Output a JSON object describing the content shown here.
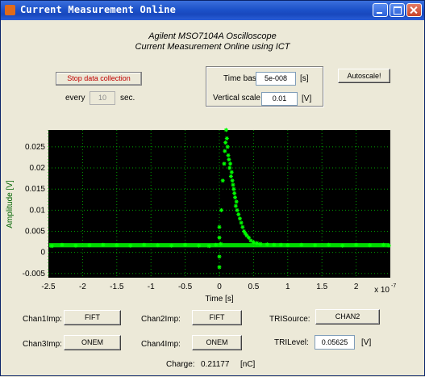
{
  "window": {
    "title": "Current Measurement Online"
  },
  "header": {
    "line1": "Agilent MSO7104A Oscilloscope",
    "line2": "Current Measurement Online using ICT"
  },
  "controls": {
    "stop_button": "Stop data collection",
    "every_label": "every",
    "every_value": "10",
    "sec_label": "sec.",
    "timebase_label": "Time base",
    "timebase_value": "5e-008",
    "timebase_unit": "[s]",
    "vscale_label": "Vertical scale",
    "vscale_value": "0.01",
    "vscale_unit": "[V]",
    "autoscale_button": "Autoscale!"
  },
  "channels": {
    "chan1_label": "Chan1Imp:",
    "chan1_value": "FIFT",
    "chan2_label": "Chan2Imp:",
    "chan2_value": "FIFT",
    "chan3_label": "Chan3Imp:",
    "chan3_value": "ONEM",
    "chan4_label": "Chan4Imp:",
    "chan4_value": "ONEM",
    "trisource_label": "TRISource:",
    "trisource_value": "CHAN2",
    "trilevel_label": "TRILevel:",
    "trilevel_value": "0.05625",
    "trilevel_unit": "[V]",
    "charge_label": "Charge:",
    "charge_value": "0.21177",
    "charge_unit": "[nC]"
  },
  "colors": {
    "plot_bg": "#000000",
    "trace": "#00ff00",
    "grid": "#00a000"
  },
  "chart_data": {
    "type": "scatter",
    "xlabel": "Time [s]",
    "ylabel": "Amplitude [V]",
    "x_exponent_label": "x 10",
    "x_exponent_power": "-7",
    "xlim": [
      -2.5,
      2.5
    ],
    "ylim": [
      -0.006,
      0.029
    ],
    "x_ticks": [
      -2.5,
      -2,
      -1.5,
      -1,
      -0.5,
      0,
      0.5,
      1,
      1.5,
      2
    ],
    "y_ticks": [
      -0.005,
      0,
      0.005,
      0.01,
      0.015,
      0.02,
      0.025
    ],
    "x_tick_labels": [
      "-2.5",
      "-2",
      "-1.5",
      "-1",
      "-0.5",
      "0",
      "0.5",
      "1",
      "1.5",
      "2"
    ],
    "y_tick_labels": [
      "-0.005",
      "0",
      "0.005",
      "0.01",
      "0.015",
      "0.02",
      "0.025"
    ],
    "grid": true,
    "marker": "star",
    "series": [
      {
        "x": [
          -2.45,
          -2.3,
          -2.1,
          -1.9,
          -1.7,
          -1.5,
          -1.3,
          -1.1,
          -0.9,
          -0.7,
          -0.5,
          -0.3,
          -0.15,
          -0.05,
          0.0,
          0.0,
          0.0,
          0.0,
          0.02,
          0.03,
          0.05,
          0.07,
          0.08,
          0.09,
          0.1,
          0.11,
          0.12,
          0.13,
          0.14,
          0.15,
          0.16,
          0.17,
          0.18,
          0.19,
          0.2,
          0.21,
          0.22,
          0.23,
          0.24,
          0.25,
          0.26,
          0.28,
          0.3,
          0.32,
          0.34,
          0.36,
          0.38,
          0.4,
          0.43,
          0.46,
          0.5,
          0.55,
          0.6,
          0.7,
          0.8,
          0.9,
          1.0,
          1.2,
          1.4,
          1.6,
          1.8,
          2.0,
          2.2,
          2.4,
          2.48
        ],
        "y": [
          0.0015,
          0.0018,
          0.0016,
          0.0017,
          0.0018,
          0.0017,
          0.0016,
          0.0018,
          0.0017,
          0.0016,
          0.0018,
          0.0016,
          0.0015,
          0.0018,
          -0.0035,
          -0.001,
          0.0035,
          0.006,
          0.002,
          0.01,
          0.017,
          0.021,
          0.024,
          0.026,
          0.029,
          0.027,
          0.025,
          0.023,
          0.022,
          0.02,
          0.021,
          0.018,
          0.019,
          0.017,
          0.016,
          0.015,
          0.014,
          0.013,
          0.011,
          0.012,
          0.01,
          0.009,
          0.008,
          0.007,
          0.006,
          0.005,
          0.0045,
          0.004,
          0.0035,
          0.0028,
          0.0024,
          0.0022,
          0.002,
          0.0019,
          0.0018,
          0.0018,
          0.0017,
          0.0018,
          0.0017,
          0.0018,
          0.0016,
          0.0018,
          0.0017,
          0.0018,
          0.0016
        ]
      }
    ]
  }
}
